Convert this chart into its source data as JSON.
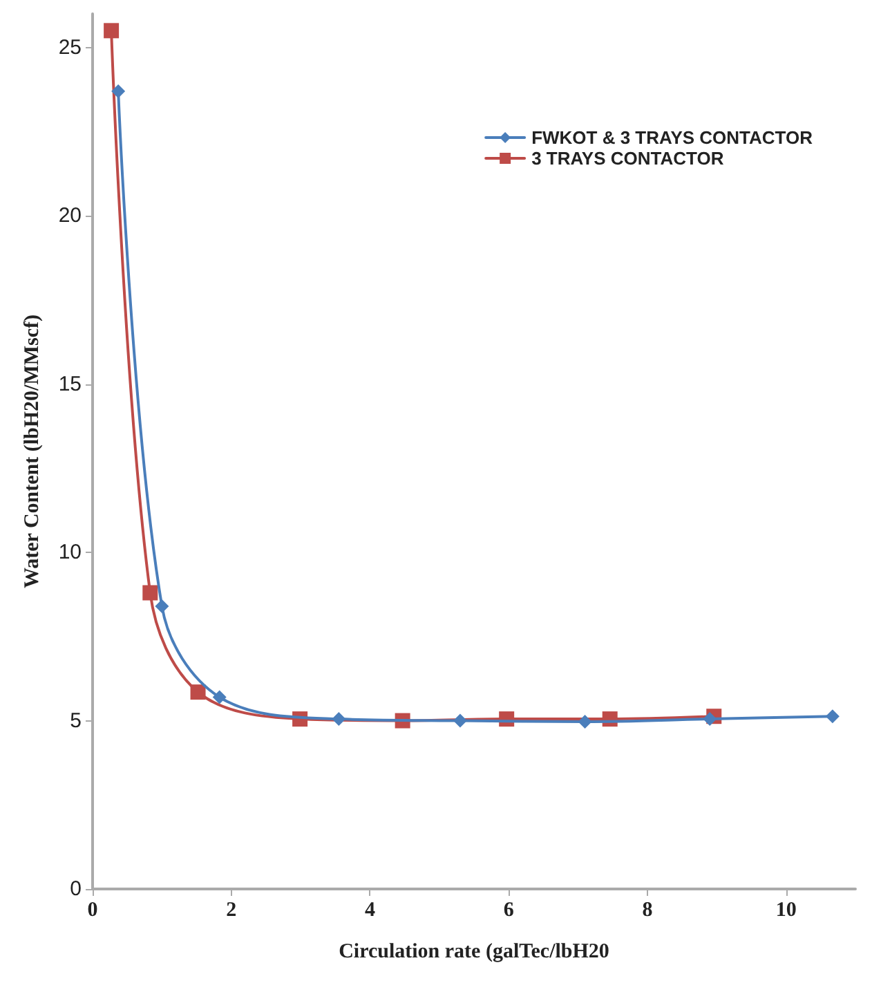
{
  "chart_data": {
    "type": "line",
    "xlabel": "Circulation rate (galTec/lbH20",
    "ylabel": "Water Content (lbH20/MMscf)",
    "xlim": [
      0,
      11
    ],
    "xticks": [
      0,
      2,
      4,
      6,
      8,
      10
    ],
    "ylim": [
      0,
      26
    ],
    "yticks": [
      0,
      5,
      10,
      15,
      20,
      25
    ],
    "grid": false,
    "legend": "top right",
    "line_style": "solid",
    "series": [
      {
        "name": "FWKOT & 3 TRAYS CONTACTOR",
        "color": "#4a7ebb",
        "marker": "diamond",
        "x": [
          0.37,
          1.0,
          1.83,
          3.55,
          5.3,
          7.1,
          8.9,
          10.67
        ],
        "values": [
          23.7,
          8.4,
          5.7,
          5.05,
          5.0,
          4.97,
          5.05,
          5.13
        ]
      },
      {
        "name": "3 TRAYS CONTACTOR",
        "color": "#be4b48",
        "marker": "square",
        "x": [
          0.27,
          0.83,
          1.52,
          2.99,
          4.47,
          5.97,
          7.46,
          8.96
        ],
        "values": [
          25.5,
          8.8,
          5.85,
          5.05,
          5.0,
          5.05,
          5.05,
          5.13
        ]
      }
    ]
  }
}
